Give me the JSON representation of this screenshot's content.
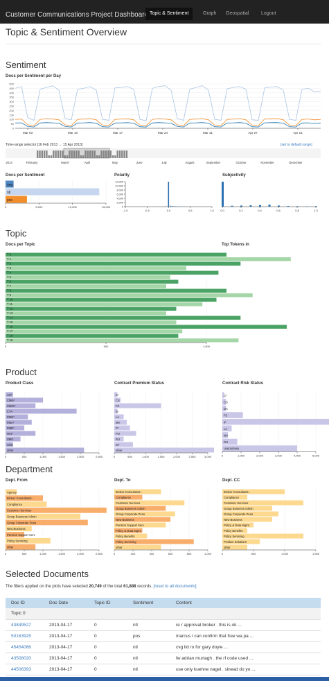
{
  "nav": {
    "brand": "Customer Communications Project Dashboard",
    "items": [
      {
        "label": "Topic & Sentiment",
        "active": true
      },
      {
        "label": "Graph",
        "active": false
      },
      {
        "label": "Geospatial",
        "active": false
      },
      {
        "label": "Logout",
        "active": false
      }
    ]
  },
  "page_title": "Topic & Sentiment Overview",
  "sentiment": {
    "section_title": "Sentiment",
    "per_day_title": "Docs per Sentiment per Day",
    "time_range_label": "Time-range selector",
    "time_range_value": "[16 Feb 2013 → 15 Apr 2013]",
    "reset_link": "[set to default range]",
    "docs_per_sentiment_title": "Docs per Sentiment",
    "polarity_title": "Polarity",
    "subjectivity_title": "Subjectivity"
  },
  "topic": {
    "section_title": "Topic",
    "docs_per_topic_title": "Docs per Topic",
    "top_tokens_title": "Top Tokens in"
  },
  "product": {
    "section_title": "Product",
    "class_title": "Product Class",
    "premium_title": "Contract Premium Status",
    "risk_title": "Contract Risk Status"
  },
  "department": {
    "section_title": "Department",
    "from_title": "Dept. From",
    "to_title": "Dept. To",
    "cc_title": "Dept. CC"
  },
  "selected": {
    "section_title": "Selected Documents",
    "summary_prefix": "The filters applied on the plots have selected",
    "selected_count": "20,749",
    "summary_middle": "of the total",
    "total_count": "61,888",
    "summary_suffix": "records.",
    "reset_link": "[reset to all documents]",
    "columns": [
      "Doc ID",
      "Doc Date",
      "Topic ID",
      "Sentiment",
      "Content"
    ],
    "group_label": "Topic 0",
    "rows": [
      {
        "id": "43849527",
        "date": "2013-04-17",
        "topic": "0",
        "sentiment": "ntl",
        "content": "re r approval broker . this is ok ..."
      },
      {
        "id": "50163925",
        "date": "2013-04-17",
        "topic": "0",
        "sentiment": "pos",
        "content": "marcus i can confirm that free wa pa ..."
      },
      {
        "id": "45454066",
        "date": "2013-04-17",
        "topic": "0",
        "sentiment": "ntl",
        "content": "cvg ltd ro for gary doyle ..."
      },
      {
        "id": "43508020",
        "date": "2013-04-17",
        "topic": "0",
        "sentiment": "ntl",
        "content": "fw adrian murtagh . the rf code used ..."
      },
      {
        "id": "44506393",
        "date": "2013-04-17",
        "topic": "0",
        "sentiment": "ntl",
        "content": "use only kuehne nagel . sinead do yo ..."
      }
    ]
  },
  "chart_data": [
    {
      "chart": "docs_per_sentiment_per_day",
      "type": "line",
      "x_ticks": [
        "Mar 03",
        "Mar 10",
        "Mar 17",
        "Mar 24",
        "Mar 31",
        "Apr 07",
        "Apr 14"
      ],
      "y_ticks": [
        0,
        50,
        100,
        150,
        200,
        250,
        300,
        350,
        400,
        450,
        500
      ],
      "ylim": [
        0,
        500
      ],
      "series": [
        {
          "color": "#a9c4e4",
          "values": [
            450,
            470,
            120,
            90,
            440,
            460,
            480,
            430,
            110,
            95,
            440,
            450,
            470,
            430,
            100,
            90,
            455,
            460,
            470,
            440,
            100,
            85,
            450,
            470,
            480,
            430,
            110,
            90,
            440,
            460,
            480,
            430,
            100,
            90,
            445,
            460,
            470,
            440,
            95,
            88,
            455,
            465,
            470,
            430,
            100,
            90,
            440,
            450,
            410,
            420
          ]
        },
        {
          "color": "#f28e2b",
          "values": [
            100,
            105,
            40,
            30,
            100,
            110,
            105,
            95,
            40,
            30,
            100,
            105,
            110,
            95,
            35,
            30,
            100,
            105,
            108,
            95,
            35,
            28,
            100,
            110,
            105,
            95,
            40,
            30,
            100,
            105,
            110,
            95,
            35,
            30,
            100,
            105,
            110,
            95,
            35,
            30,
            105,
            108,
            110,
            95,
            35,
            30,
            100,
            105,
            95,
            100
          ]
        },
        {
          "color": "#1f77b4",
          "values": [
            60,
            62,
            20,
            15,
            60,
            65,
            62,
            58,
            20,
            15,
            60,
            62,
            65,
            58,
            18,
            15,
            60,
            62,
            64,
            58,
            18,
            14,
            60,
            65,
            62,
            58,
            20,
            15,
            60,
            62,
            65,
            58,
            18,
            15,
            60,
            62,
            65,
            58,
            18,
            15,
            62,
            64,
            65,
            58,
            18,
            15,
            60,
            62,
            55,
            60
          ]
        }
      ]
    },
    {
      "chart": "time_range_selector",
      "type": "bar",
      "month_labels": [
        "2013",
        "February",
        "March",
        "April",
        "May",
        "June",
        "July",
        "August",
        "September",
        "October",
        "November",
        "December"
      ]
    },
    {
      "chart": "docs_per_sentiment",
      "type": "bar",
      "categories": [
        "neg",
        "ntl",
        "pos"
      ],
      "values": [
        1200,
        14000,
        3200
      ],
      "colors": [
        "#4e86c1",
        "#c5d6ee",
        "#f28e2b"
      ],
      "x_ticks": [
        0,
        5000,
        10000,
        15000
      ]
    },
    {
      "chart": "polarity",
      "type": "bar",
      "x_ticks": [
        -1.0,
        -0.5,
        0.0,
        0.5,
        1.0
      ],
      "y_ticks": [
        0,
        2000,
        4000,
        6000,
        8000,
        10000,
        12000
      ],
      "bins": [
        {
          "x": 0.0,
          "value": 12000
        },
        {
          "x": 0.05,
          "value": 400
        },
        {
          "x": 0.1,
          "value": 300
        },
        {
          "x": 0.15,
          "value": 200
        },
        {
          "x": 0.2,
          "value": 150
        },
        {
          "x": 0.25,
          "value": 120
        },
        {
          "x": 0.3,
          "value": 100
        },
        {
          "x": 0.4,
          "value": 80
        },
        {
          "x": 0.5,
          "value": 60
        },
        {
          "x": -0.05,
          "value": 100
        },
        {
          "x": -0.1,
          "value": 80
        }
      ]
    },
    {
      "chart": "subjectivity",
      "type": "bar",
      "x_ticks": [
        0.0,
        0.2,
        0.4,
        0.6,
        0.8,
        1.0
      ],
      "bins": [
        {
          "x": 0.0,
          "value": 11000
        },
        {
          "x": 0.1,
          "value": 400
        },
        {
          "x": 0.2,
          "value": 500
        },
        {
          "x": 0.3,
          "value": 600
        },
        {
          "x": 0.4,
          "value": 700
        },
        {
          "x": 0.5,
          "value": 900
        },
        {
          "x": 0.6,
          "value": 500
        },
        {
          "x": 0.7,
          "value": 300
        },
        {
          "x": 0.8,
          "value": 200
        },
        {
          "x": 0.9,
          "value": 150
        },
        {
          "x": 1.0,
          "value": 250
        }
      ]
    },
    {
      "chart": "docs_per_topic",
      "type": "bar",
      "categories": [
        "0",
        "1",
        "2",
        "3",
        "4",
        "5",
        "6",
        "7",
        "8",
        "9",
        "10",
        "11",
        "12",
        "13",
        "14",
        "15",
        "16",
        "17",
        "18",
        "19"
      ],
      "values": [
        1100,
        1420,
        1170,
        900,
        1060,
        820,
        860,
        800,
        1100,
        1230,
        1050,
        980,
        850,
        800,
        1170,
        850,
        1400,
        880,
        860,
        1160
      ],
      "x_ticks": [
        0,
        500,
        1000
      ]
    },
    {
      "chart": "product_class",
      "type": "bar",
      "categories": [
        "AH*",
        "CMN*",
        "CMNI*",
        "CTA",
        "FMG*",
        "FMA*",
        "FMD*",
        "HAI*",
        "SMG",
        "SHS",
        "other"
      ],
      "values": [
        200,
        1000,
        800,
        1900,
        600,
        700,
        500,
        800,
        400,
        200,
        2100
      ],
      "x_ticks": [
        0,
        500,
        1000,
        1500,
        2000,
        2500
      ]
    },
    {
      "chart": "contract_premium_status",
      "type": "bar",
      "categories": [
        "C*",
        "CS",
        "FS",
        "IS",
        "LA",
        "MA",
        "P*",
        "PU",
        "RU",
        "SF",
        "other"
      ],
      "values": [
        100,
        200,
        1500,
        100,
        300,
        400,
        500,
        700,
        300,
        600,
        3200
      ],
      "x_ticks": [
        0,
        500,
        1000,
        1500,
        2000,
        2500,
        3000
      ]
    },
    {
      "chart": "contract_risk_status",
      "type": "bar",
      "categories": [
        "C*",
        "CS",
        "DA",
        "FS",
        "IF",
        "LA",
        "MA",
        "RU",
        "UNKNOWN"
      ],
      "values": [
        100,
        200,
        200,
        1100,
        5800,
        500,
        300,
        800,
        4000
      ],
      "x_ticks": [
        0,
        1000,
        2000,
        3000,
        4000,
        5000
      ]
    },
    {
      "chart": "dept_from",
      "type": "bar",
      "categories": [
        "Agency",
        "Broker Consultants -",
        "Compliance",
        "Customer Services",
        "Group Business Admin",
        "Group Corporate Pens",
        "New Business",
        "Pension Support Serv",
        "Policy Servicing",
        "other"
      ],
      "values": [
        300,
        1000,
        1100,
        2700,
        2000,
        2200,
        700,
        500,
        1200,
        800
      ],
      "x_ticks": [
        0,
        500,
        1000,
        1500,
        2000,
        2500
      ]
    },
    {
      "chart": "dept_to",
      "type": "bar",
      "categories": [
        "Broker Consultants -",
        "Compliance",
        "Customer Services",
        "Group Business Admin",
        "Group Corporate Pens",
        "New Business",
        "Pension Support Serv",
        "Policy & Data Mgmt",
        "Policy Benefits",
        "Policy Servicing",
        "other"
      ],
      "values": [
        500,
        300,
        750,
        550,
        650,
        600,
        550,
        300,
        350,
        850,
        500
      ],
      "x_ticks": [
        0,
        200,
        400,
        600,
        800,
        1000
      ]
    },
    {
      "chart": "dept_cc",
      "type": "bar",
      "categories": [
        "Broker Consultants -",
        "Compliance",
        "Customer Services",
        "Group Business Admin",
        "Group Corporate Pens",
        "New Business",
        "Policy & Data Mgmt",
        "Policy Benefits",
        "Policy Servicing",
        "Product Solutions",
        "other"
      ],
      "values": [
        1000,
        400,
        1300,
        800,
        900,
        800,
        500,
        400,
        1300,
        600,
        400
      ],
      "x_ticks": [
        0,
        500,
        1000,
        1500
      ]
    }
  ]
}
